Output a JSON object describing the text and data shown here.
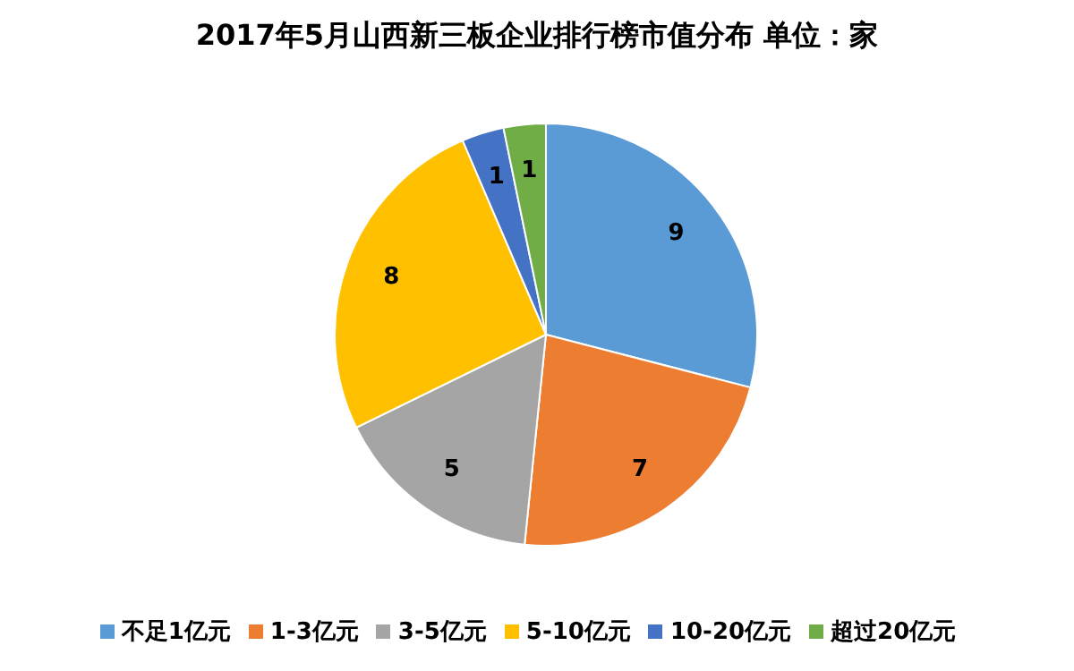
{
  "chart_data": {
    "type": "pie",
    "title": "2017年5月山西新三板企业排行榜市值分布  单位：家",
    "categories": [
      "不足1亿元",
      "1-3亿元",
      "3-5亿元",
      "5-10亿元",
      "10-20亿元",
      "超过20亿元"
    ],
    "values": [
      9,
      7,
      5,
      8,
      1,
      1
    ],
    "colors": [
      "#5b9bd5",
      "#ed7d31",
      "#a5a5a5",
      "#ffc000",
      "#4472c4",
      "#70ad47"
    ],
    "data_labels": true,
    "legend": "bottom"
  }
}
